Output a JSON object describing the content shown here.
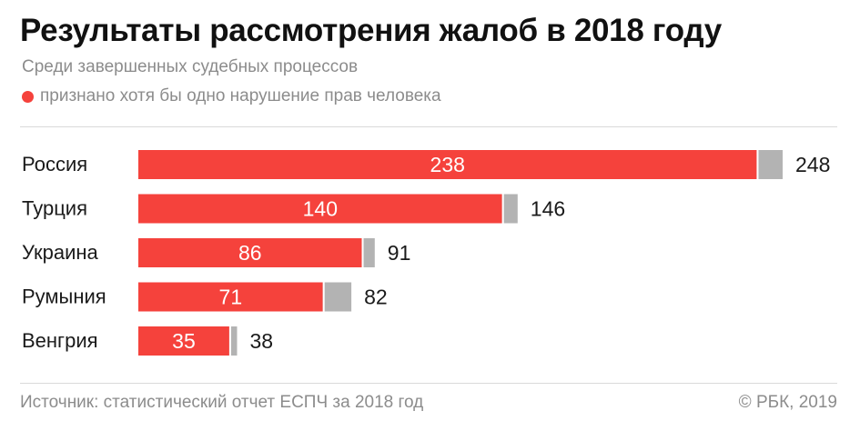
{
  "header": {
    "title": "Результаты рассмотрения жалоб в 2018 году",
    "subtitle": "Среди завершенных судебных процессов",
    "legend_label": "признано хотя бы одно нарушение прав человека"
  },
  "colors": {
    "violation": "#f5423c",
    "total": "#b3b3b3"
  },
  "chart_data": {
    "type": "bar",
    "orientation": "horizontal",
    "stacked": false,
    "categories": [
      "Россия",
      "Турция",
      "Украина",
      "Румыния",
      "Венгрия"
    ],
    "series": [
      {
        "name": "признано хотя бы одно нарушение прав человека",
        "values": [
          238,
          140,
          86,
          71,
          35
        ]
      },
      {
        "values": [
          248,
          146,
          91,
          82,
          38
        ]
      }
    ],
    "xlim": [
      0,
      248
    ],
    "grid": false,
    "legend_position": "top-left"
  },
  "footer": {
    "source": "Источник: статистический отчет ЕСПЧ за 2018 год",
    "copyright": "© РБК, 2019"
  }
}
